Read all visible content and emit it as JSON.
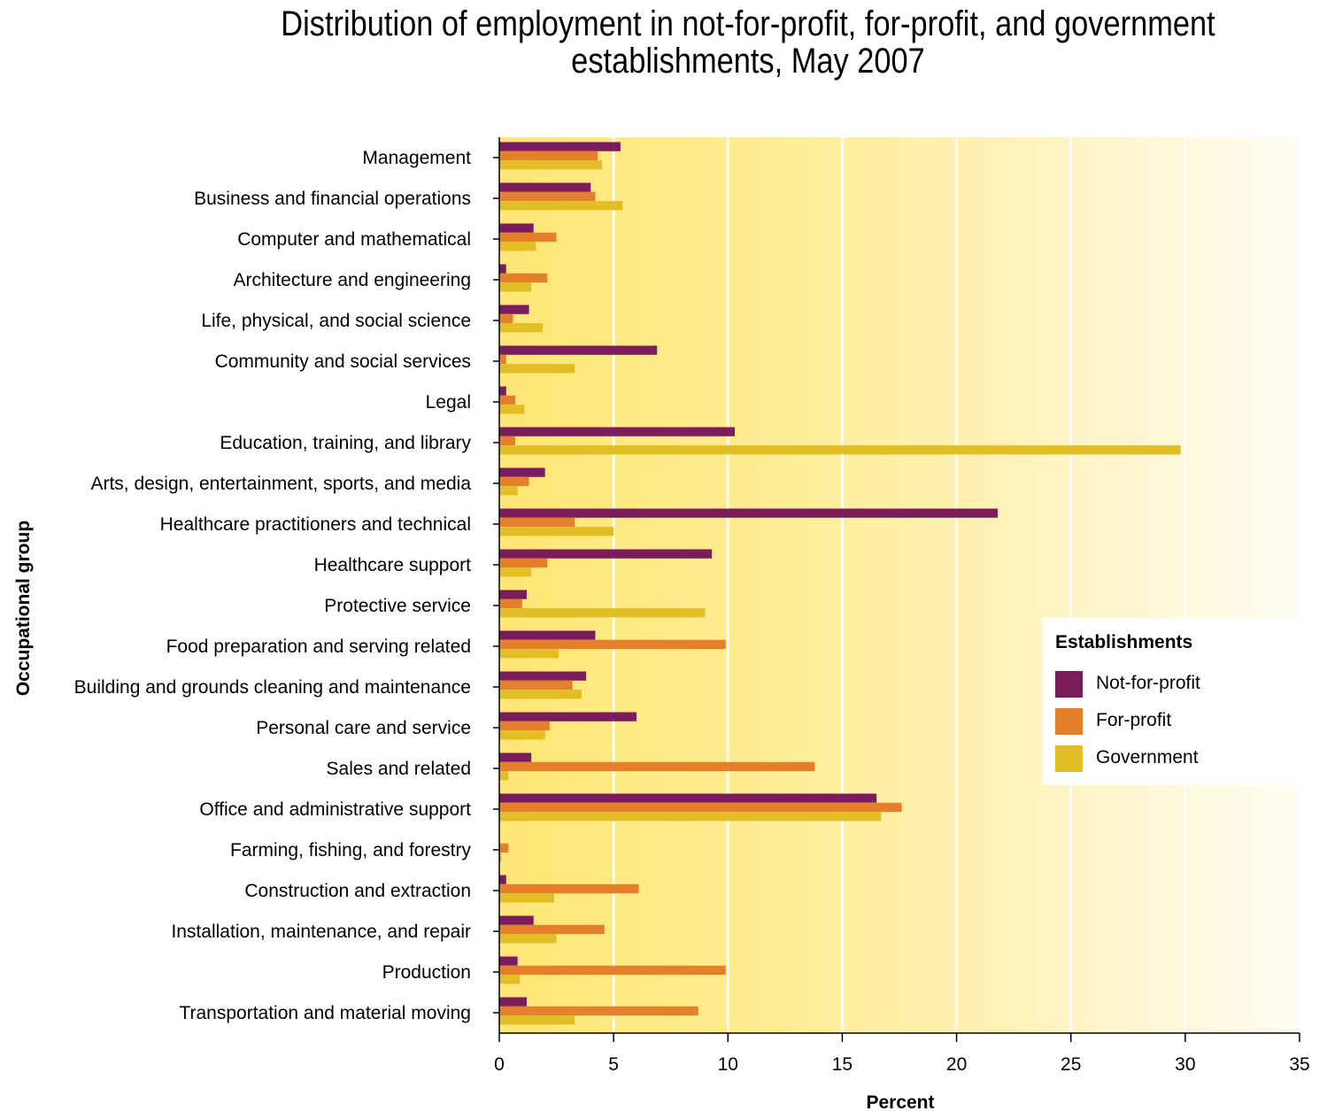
{
  "chart_data": {
    "type": "bar",
    "orientation": "horizontal",
    "title_lines": [
      "Distribution of employment in not-for-profit, for-profit, and government",
      "establishments, May 2007"
    ],
    "xlabel": "Percent",
    "ylabel": "Occupational group",
    "xlim": [
      0,
      35
    ],
    "xticks": [
      "0",
      "5",
      "10",
      "15",
      "20",
      "25",
      "30",
      "35"
    ],
    "grid": "vertical",
    "legend_position": "right",
    "legend_title": "Establishments",
    "categories": [
      "Management",
      "Business and financial operations",
      "Computer and mathematical",
      "Architecture and engineering",
      "Life, physical, and social science",
      "Community and social services",
      "Legal",
      "Education, training, and library",
      "Arts, design, entertainment, sports, and media",
      "Healthcare practitioners and technical",
      "Healthcare support",
      "Protective service",
      "Food preparation and serving related",
      "Building and grounds cleaning and maintenance",
      "Personal care and service",
      "Sales and related",
      "Office and administrative support",
      "Farming, fishing, and forestry",
      "Construction and extraction",
      "Installation, maintenance, and repair",
      "Production",
      "Transportation and material moving"
    ],
    "series": [
      {
        "name": "Not-for-profit",
        "color": "#7b1c5c",
        "values": [
          5.3,
          4.0,
          1.5,
          0.3,
          1.3,
          6.9,
          0.3,
          10.3,
          2.0,
          21.8,
          9.3,
          1.2,
          4.2,
          3.8,
          6.0,
          1.4,
          16.5,
          0.0,
          0.3,
          1.5,
          0.8,
          1.2
        ]
      },
      {
        "name": "For-profit",
        "color": "#e4802a",
        "values": [
          4.3,
          4.2,
          2.5,
          2.1,
          0.6,
          0.3,
          0.7,
          0.7,
          1.3,
          3.3,
          2.1,
          1.0,
          9.9,
          3.2,
          2.2,
          13.8,
          17.6,
          0.4,
          6.1,
          4.6,
          9.9,
          8.7
        ]
      },
      {
        "name": "Government",
        "color": "#e3bd26",
        "values": [
          4.5,
          5.4,
          1.6,
          1.4,
          1.9,
          3.3,
          1.1,
          29.8,
          0.8,
          5.0,
          1.4,
          9.0,
          2.6,
          3.6,
          2.0,
          0.4,
          16.7,
          0.1,
          2.4,
          2.5,
          0.9,
          3.3
        ]
      }
    ]
  }
}
